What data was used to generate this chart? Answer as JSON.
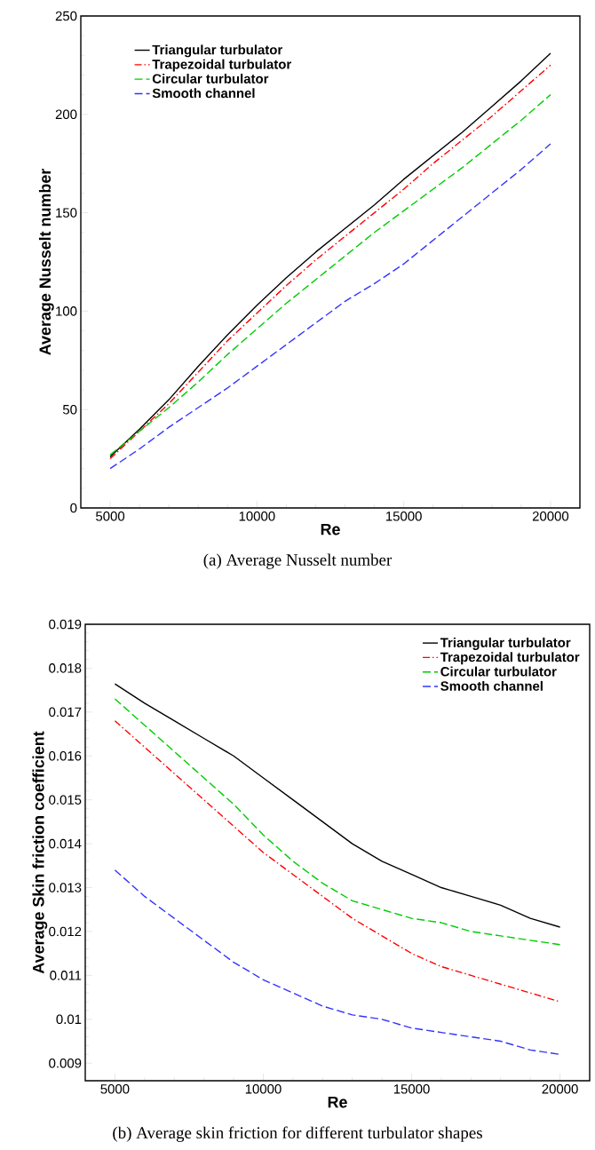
{
  "chart_data": [
    {
      "type": "line",
      "xlabel": "Re",
      "ylabel": "Average Nusselt number",
      "annotations": [
        "(a) Average Nusselt number"
      ],
      "x": [
        5000,
        6000,
        7000,
        8000,
        9000,
        10000,
        11000,
        12000,
        13000,
        14000,
        15000,
        16000,
        17000,
        18000,
        19000,
        20000
      ],
      "series": [
        {
          "name": "Triangular turbulator",
          "color": "#000000",
          "line_style": "solid",
          "values": [
            26,
            40,
            55,
            72,
            88,
            103,
            117,
            130,
            142,
            154,
            167,
            179,
            191,
            204,
            217,
            231
          ]
        },
        {
          "name": "Trapezoidal turbulator",
          "color": "#ff0000",
          "line_style": "dashdot",
          "values": [
            25,
            39,
            53,
            69,
            85,
            99,
            113,
            126,
            138,
            150,
            162,
            175,
            187,
            199,
            212,
            225
          ]
        },
        {
          "name": "Circular turbulator",
          "color": "#00cc00",
          "line_style": "dashed",
          "values": [
            27,
            39,
            51,
            64,
            78,
            91,
            104,
            116,
            128,
            140,
            151,
            162,
            173,
            185,
            197,
            210
          ]
        },
        {
          "name": "Smooth channel",
          "color": "#3333ff",
          "line_style": "dashed",
          "values": [
            20,
            30,
            41,
            51,
            61,
            72,
            83,
            94,
            105,
            114,
            124,
            136,
            148,
            160,
            172,
            185
          ]
        }
      ],
      "xlim": [
        4000,
        21000
      ],
      "ylim": [
        0,
        250
      ],
      "xticks": [
        5000,
        10000,
        15000,
        20000
      ],
      "yticks": [
        0,
        50,
        100,
        150,
        200,
        250
      ],
      "legend": "top left",
      "grid": false,
      "marker": "none"
    },
    {
      "type": "line",
      "xlabel": "Re",
      "ylabel": "Average Skin friction coefficient",
      "annotations": [
        "(b) Average skin friction for different turbulator shapes"
      ],
      "x": [
        5000,
        6000,
        7000,
        8000,
        9000,
        10000,
        11000,
        12000,
        13000,
        14000,
        15000,
        16000,
        17000,
        18000,
        19000,
        20000
      ],
      "series": [
        {
          "name": "Triangular turbulator",
          "color": "#000000",
          "line_style": "solid",
          "values": [
            0.01764,
            0.0172,
            0.0168,
            0.0164,
            0.016,
            0.0155,
            0.015,
            0.0145,
            0.014,
            0.0136,
            0.0133,
            0.013,
            0.0128,
            0.0126,
            0.0123,
            0.0121
          ]
        },
        {
          "name": "Trapezoidal turbulator",
          "color": "#ff0000",
          "line_style": "dashdot",
          "values": [
            0.0168,
            0.0162,
            0.0156,
            0.015,
            0.0144,
            0.0138,
            0.0133,
            0.0128,
            0.0123,
            0.0119,
            0.0115,
            0.0112,
            0.011,
            0.0108,
            0.0106,
            0.0104
          ]
        },
        {
          "name": "Circular turbulator",
          "color": "#00cc00",
          "line_style": "dashed",
          "values": [
            0.0173,
            0.0167,
            0.0161,
            0.0155,
            0.0149,
            0.0142,
            0.0136,
            0.0131,
            0.0127,
            0.0125,
            0.0123,
            0.0122,
            0.012,
            0.0119,
            0.0118,
            0.0117
          ]
        },
        {
          "name": "Smooth channel",
          "color": "#3333ff",
          "line_style": "dashed",
          "values": [
            0.0134,
            0.0128,
            0.0123,
            0.0118,
            0.0113,
            0.0109,
            0.0106,
            0.0103,
            0.0101,
            0.01,
            0.0098,
            0.0097,
            0.0096,
            0.0095,
            0.0093,
            0.0092
          ]
        }
      ],
      "xlim": [
        4000,
        21000
      ],
      "ylim": [
        0.0086,
        0.019
      ],
      "xticks": [
        5000,
        10000,
        15000,
        20000
      ],
      "yticks": [
        0.009,
        0.01,
        0.011,
        0.012,
        0.013,
        0.014,
        0.015,
        0.016,
        0.017,
        0.018,
        0.019
      ],
      "legend": "top right",
      "grid": false,
      "marker": "none"
    }
  ]
}
